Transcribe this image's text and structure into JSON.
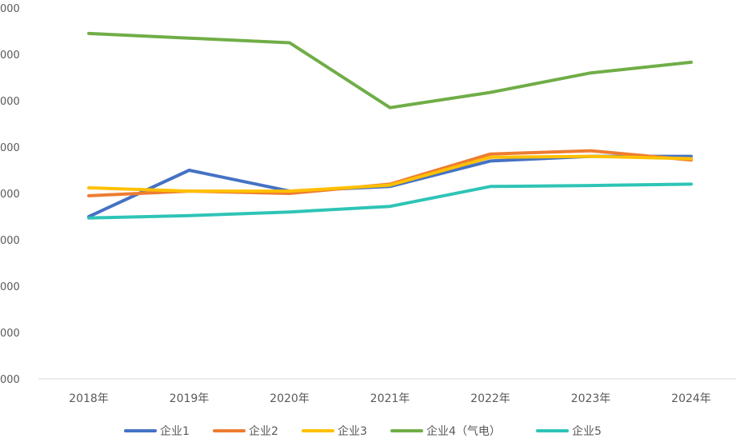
{
  "chart_data": {
    "type": "line",
    "title": "",
    "xlabel": "",
    "ylabel": "",
    "categories": [
      "2018年",
      "2019年",
      "2020年",
      "2021年",
      "2022年",
      "2023年",
      "2024年"
    ],
    "y_tick_labels": [
      "000",
      "000",
      "000",
      "000",
      "000",
      "000",
      "000",
      "000",
      "000"
    ],
    "y_tick_values": [
      0,
      1,
      2,
      3,
      4,
      5,
      6,
      7,
      8
    ],
    "ylim": [
      0,
      8
    ],
    "grid": false,
    "legend_position": "bottom",
    "series": [
      {
        "name": "企业1",
        "color": "#4472C4",
        "values": [
          3.5,
          4.5,
          4.05,
          4.15,
          4.7,
          4.8,
          4.8
        ]
      },
      {
        "name": "企业2",
        "color": "#ED7D31",
        "values": [
          3.95,
          4.05,
          4.0,
          4.2,
          4.85,
          4.92,
          4.72
        ]
      },
      {
        "name": "企业3",
        "color": "#FFC000",
        "values": [
          4.12,
          4.05,
          4.05,
          4.18,
          4.78,
          4.8,
          4.75
        ]
      },
      {
        "name": "企业4（气电）",
        "color": "#70AD47",
        "values": [
          7.45,
          7.35,
          7.25,
          5.85,
          6.18,
          6.6,
          6.83
        ]
      },
      {
        "name": "企业5",
        "color": "#2EC4B6",
        "values": [
          3.47,
          3.52,
          3.6,
          3.72,
          4.15,
          4.17,
          4.2
        ]
      }
    ]
  }
}
